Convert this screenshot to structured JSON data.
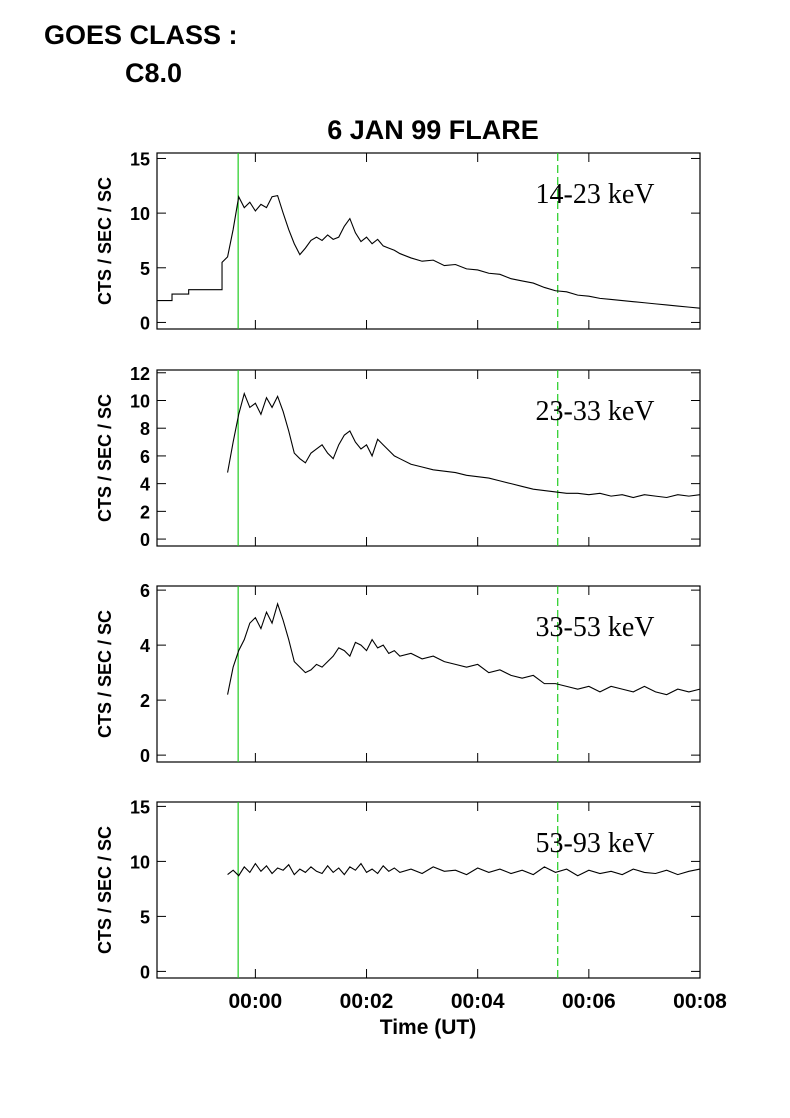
{
  "header": {
    "goes_label": "GOES CLASS :",
    "goes_class": "C8.0"
  },
  "chart_data": [
    {
      "type": "line",
      "title": "6 JAN 99 FLARE",
      "label": "14-23 keV",
      "y_label": "CTS / SEC / SC",
      "color": "#000000",
      "xlim": [
        -1.77,
        8
      ],
      "xticks": [
        0,
        2,
        4,
        6,
        8
      ],
      "ylim": [
        -0.6,
        15.5
      ],
      "yticks": [
        0,
        5,
        10,
        15
      ],
      "markers": [
        {
          "x": -0.31,
          "style": "solid"
        },
        {
          "x": 5.44,
          "style": "dashed"
        }
      ],
      "marker_color": "#22cc22",
      "x": [
        -1.77,
        -1.5,
        -1.5,
        -1.2,
        -1.2,
        -0.6,
        -0.6,
        -0.5,
        -0.4,
        -0.3,
        -0.2,
        -0.1,
        0,
        0.1,
        0.2,
        0.3,
        0.4,
        0.5,
        0.6,
        0.7,
        0.8,
        0.9,
        1.0,
        1.1,
        1.2,
        1.3,
        1.4,
        1.5,
        1.6,
        1.7,
        1.8,
        1.9,
        2.0,
        2.1,
        2.2,
        2.3,
        2.4,
        2.5,
        2.6,
        2.8,
        3.0,
        3.2,
        3.4,
        3.6,
        3.8,
        4.0,
        4.2,
        4.4,
        4.6,
        4.8,
        5.0,
        5.2,
        5.4,
        5.6,
        5.8,
        6.0,
        6.2,
        6.4,
        6.6,
        6.8,
        7.0,
        7.2,
        7.4,
        7.6,
        7.8,
        8.0
      ],
      "values": [
        2.0,
        2.0,
        2.6,
        2.6,
        3.0,
        3.0,
        5.5,
        6,
        8.5,
        11.5,
        10.5,
        11,
        10.2,
        10.8,
        10.5,
        11.5,
        11.6,
        10,
        8.5,
        7.2,
        6.2,
        6.8,
        7.5,
        7.8,
        7.5,
        8.0,
        7.6,
        7.8,
        8.8,
        9.5,
        8.2,
        7.4,
        7.8,
        7.2,
        7.6,
        7.0,
        6.8,
        6.6,
        6.3,
        5.9,
        5.6,
        5.7,
        5.2,
        5.3,
        4.9,
        4.8,
        4.5,
        4.4,
        4.0,
        3.8,
        3.6,
        3.2,
        2.9,
        2.8,
        2.5,
        2.4,
        2.2,
        2.1,
        2.0,
        1.9,
        1.8,
        1.7,
        1.6,
        1.5,
        1.4,
        1.3
      ]
    },
    {
      "type": "line",
      "label": "23-33 keV",
      "y_label": "CTS / SEC / SC",
      "color": "#000000",
      "xlim": [
        -1.77,
        8
      ],
      "xticks": [
        0,
        2,
        4,
        6,
        8
      ],
      "ylim": [
        -0.5,
        12.2
      ],
      "yticks": [
        0,
        2,
        4,
        6,
        8,
        10,
        12
      ],
      "markers": [
        {
          "x": -0.31,
          "style": "solid"
        },
        {
          "x": 5.44,
          "style": "dashed"
        }
      ],
      "marker_color": "#22cc22",
      "x": [
        -0.5,
        -0.4,
        -0.3,
        -0.2,
        -0.1,
        0,
        0.1,
        0.2,
        0.3,
        0.4,
        0.5,
        0.6,
        0.7,
        0.8,
        0.9,
        1.0,
        1.1,
        1.2,
        1.3,
        1.4,
        1.5,
        1.6,
        1.7,
        1.8,
        1.9,
        2.0,
        2.1,
        2.2,
        2.3,
        2.4,
        2.5,
        2.6,
        2.8,
        3.0,
        3.2,
        3.4,
        3.6,
        3.8,
        4.0,
        4.2,
        4.4,
        4.6,
        4.8,
        5.0,
        5.2,
        5.4,
        5.6,
        5.8,
        6.0,
        6.2,
        6.4,
        6.6,
        6.8,
        7.0,
        7.2,
        7.4,
        7.6,
        7.8,
        8.0
      ],
      "values": [
        4.8,
        7,
        9,
        10.5,
        9.5,
        9.8,
        9.0,
        10.2,
        9.5,
        10.3,
        9.2,
        7.8,
        6.2,
        5.8,
        5.5,
        6.2,
        6.5,
        6.8,
        6.2,
        5.8,
        6.8,
        7.5,
        7.8,
        7.0,
        6.5,
        6.8,
        6.0,
        7.2,
        6.8,
        6.4,
        6.0,
        5.8,
        5.4,
        5.2,
        5.0,
        4.9,
        4.8,
        4.6,
        4.5,
        4.4,
        4.2,
        4.0,
        3.8,
        3.6,
        3.5,
        3.4,
        3.3,
        3.3,
        3.2,
        3.3,
        3.1,
        3.2,
        3.0,
        3.2,
        3.1,
        3.0,
        3.2,
        3.1,
        3.2
      ]
    },
    {
      "type": "line",
      "label": "33-53 keV",
      "y_label": "CTS / SEC / SC",
      "color": "#000000",
      "xlim": [
        -1.77,
        8
      ],
      "xticks": [
        0,
        2,
        4,
        6,
        8
      ],
      "ylim": [
        -0.25,
        6.15
      ],
      "yticks": [
        0,
        2,
        4,
        6
      ],
      "markers": [
        {
          "x": -0.31,
          "style": "solid"
        },
        {
          "x": 5.44,
          "style": "dashed"
        }
      ],
      "marker_color": "#22cc22",
      "x": [
        -0.5,
        -0.4,
        -0.3,
        -0.2,
        -0.1,
        0,
        0.1,
        0.2,
        0.3,
        0.4,
        0.5,
        0.6,
        0.7,
        0.8,
        0.9,
        1.0,
        1.1,
        1.2,
        1.3,
        1.4,
        1.5,
        1.6,
        1.7,
        1.8,
        1.9,
        2.0,
        2.1,
        2.2,
        2.3,
        2.4,
        2.5,
        2.6,
        2.8,
        3.0,
        3.2,
        3.4,
        3.6,
        3.8,
        4.0,
        4.2,
        4.4,
        4.6,
        4.8,
        5.0,
        5.2,
        5.4,
        5.6,
        5.8,
        6.0,
        6.2,
        6.4,
        6.6,
        6.8,
        7.0,
        7.2,
        7.4,
        7.6,
        7.8,
        8.0
      ],
      "values": [
        2.2,
        3.2,
        3.8,
        4.2,
        4.8,
        5.0,
        4.6,
        5.2,
        4.8,
        5.5,
        4.9,
        4.2,
        3.4,
        3.2,
        3.0,
        3.1,
        3.3,
        3.2,
        3.4,
        3.6,
        3.9,
        3.8,
        3.6,
        4.1,
        4.0,
        3.8,
        4.2,
        3.9,
        4.0,
        3.7,
        3.8,
        3.6,
        3.7,
        3.5,
        3.6,
        3.4,
        3.3,
        3.2,
        3.3,
        3.0,
        3.1,
        2.9,
        2.8,
        2.9,
        2.6,
        2.6,
        2.5,
        2.4,
        2.5,
        2.3,
        2.5,
        2.4,
        2.3,
        2.5,
        2.3,
        2.2,
        2.4,
        2.3,
        2.4
      ]
    },
    {
      "type": "line",
      "label": "53-93 keV",
      "y_label": "CTS / SEC / SC",
      "x_label": "Time (UT)",
      "color": "#000000",
      "xlim": [
        -1.77,
        8
      ],
      "xticks": [
        {
          "value": 0,
          "label": "00:00"
        },
        {
          "value": 2,
          "label": "00:02"
        },
        {
          "value": 4,
          "label": "00:04"
        },
        {
          "value": 6,
          "label": "00:06"
        },
        {
          "value": 8,
          "label": "00:08"
        }
      ],
      "ylim": [
        -0.6,
        15.4
      ],
      "yticks": [
        0,
        5,
        10,
        15
      ],
      "markers": [
        {
          "x": -0.31,
          "style": "solid"
        },
        {
          "x": 5.44,
          "style": "dashed"
        }
      ],
      "marker_color": "#22cc22",
      "x": [
        -0.5,
        -0.4,
        -0.3,
        -0.2,
        -0.1,
        0,
        0.1,
        0.2,
        0.3,
        0.4,
        0.5,
        0.6,
        0.7,
        0.8,
        0.9,
        1.0,
        1.1,
        1.2,
        1.3,
        1.4,
        1.5,
        1.6,
        1.7,
        1.8,
        1.9,
        2.0,
        2.1,
        2.2,
        2.3,
        2.4,
        2.5,
        2.6,
        2.8,
        3.0,
        3.2,
        3.4,
        3.6,
        3.8,
        4.0,
        4.2,
        4.4,
        4.6,
        4.8,
        5.0,
        5.2,
        5.4,
        5.6,
        5.8,
        6.0,
        6.2,
        6.4,
        6.6,
        6.8,
        7.0,
        7.2,
        7.4,
        7.6,
        7.8,
        8.0
      ],
      "values": [
        8.8,
        9.2,
        8.7,
        9.5,
        9.0,
        9.8,
        9.1,
        9.6,
        8.9,
        9.4,
        9.2,
        9.7,
        8.8,
        9.3,
        9.0,
        9.5,
        9.1,
        8.9,
        9.6,
        9.0,
        9.4,
        8.8,
        9.5,
        9.2,
        9.8,
        9.0,
        9.3,
        8.9,
        9.6,
        9.1,
        9.4,
        9.0,
        9.3,
        8.9,
        9.5,
        9.1,
        9.2,
        8.8,
        9.4,
        9.0,
        9.3,
        8.9,
        9.2,
        8.8,
        9.5,
        9.0,
        9.3,
        8.7,
        9.2,
        8.9,
        9.1,
        8.8,
        9.3,
        9.0,
        8.9,
        9.2,
        8.8,
        9.1,
        9.3
      ]
    }
  ]
}
